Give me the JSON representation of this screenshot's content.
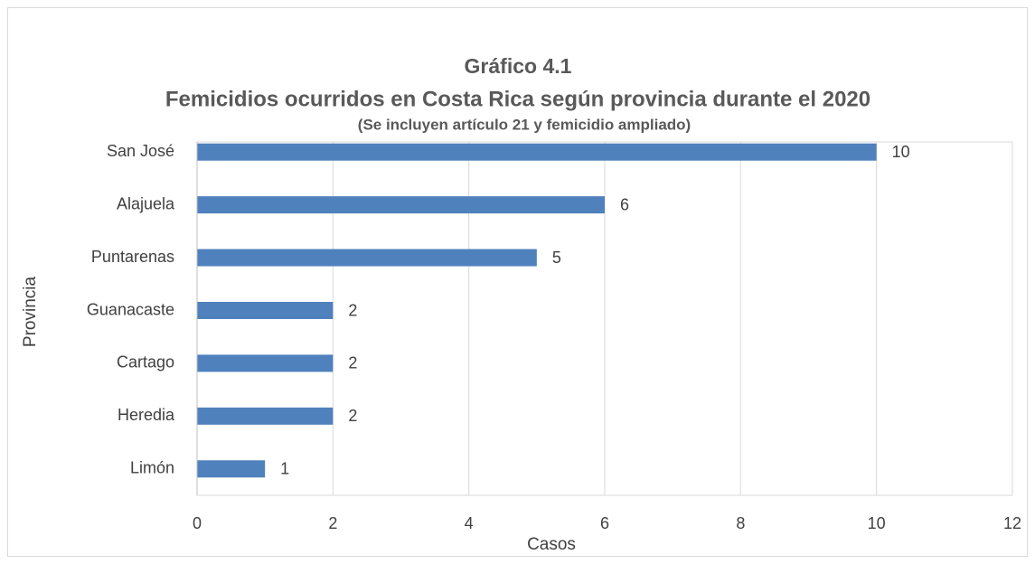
{
  "chart_data": {
    "type": "bar",
    "orientation": "horizontal",
    "title": "Gráfico 4.1",
    "subtitle": "Femicidios ocurridos en Costa Rica según provincia durante el 2020",
    "note": "(Se incluyen artículo 21 y femicidio ampliado)",
    "categories": [
      "San José",
      "Alajuela",
      "Puntarenas",
      "Guanacaste",
      "Cartago",
      "Heredia",
      "Limón"
    ],
    "values": [
      10,
      6,
      5,
      2,
      2,
      2,
      1
    ],
    "color": "#4f81bd",
    "xlabel": "Casos",
    "ylabel": "Provincia",
    "xlim": [
      0,
      12
    ],
    "xticks": [
      0,
      2,
      4,
      6,
      8,
      10,
      12
    ],
    "grid": true
  }
}
